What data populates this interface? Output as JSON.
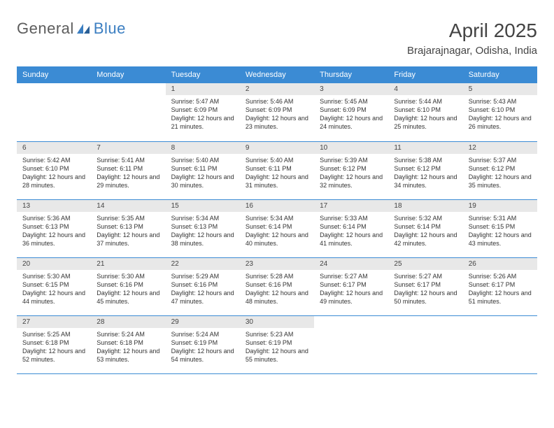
{
  "brand": {
    "general": "General",
    "blue": "Blue"
  },
  "title": "April 2025",
  "location": "Brajarajnagar, Odisha, India",
  "colors": {
    "header_bg": "#3b8bd4",
    "header_fg": "#ffffff",
    "daynum_bg": "#e8e8e8",
    "rule": "#3b8bd4",
    "brand_gray": "#5c5c5c",
    "brand_blue": "#3b7ec1"
  },
  "weekdays": [
    "Sunday",
    "Monday",
    "Tuesday",
    "Wednesday",
    "Thursday",
    "Friday",
    "Saturday"
  ],
  "layout": {
    "first_weekday_index": 2,
    "days_in_month": 30
  },
  "days": {
    "1": {
      "sunrise": "5:47 AM",
      "sunset": "6:09 PM",
      "daylight": "12 hours and 21 minutes."
    },
    "2": {
      "sunrise": "5:46 AM",
      "sunset": "6:09 PM",
      "daylight": "12 hours and 23 minutes."
    },
    "3": {
      "sunrise": "5:45 AM",
      "sunset": "6:09 PM",
      "daylight": "12 hours and 24 minutes."
    },
    "4": {
      "sunrise": "5:44 AM",
      "sunset": "6:10 PM",
      "daylight": "12 hours and 25 minutes."
    },
    "5": {
      "sunrise": "5:43 AM",
      "sunset": "6:10 PM",
      "daylight": "12 hours and 26 minutes."
    },
    "6": {
      "sunrise": "5:42 AM",
      "sunset": "6:10 PM",
      "daylight": "12 hours and 28 minutes."
    },
    "7": {
      "sunrise": "5:41 AM",
      "sunset": "6:11 PM",
      "daylight": "12 hours and 29 minutes."
    },
    "8": {
      "sunrise": "5:40 AM",
      "sunset": "6:11 PM",
      "daylight": "12 hours and 30 minutes."
    },
    "9": {
      "sunrise": "5:40 AM",
      "sunset": "6:11 PM",
      "daylight": "12 hours and 31 minutes."
    },
    "10": {
      "sunrise": "5:39 AM",
      "sunset": "6:12 PM",
      "daylight": "12 hours and 32 minutes."
    },
    "11": {
      "sunrise": "5:38 AM",
      "sunset": "6:12 PM",
      "daylight": "12 hours and 34 minutes."
    },
    "12": {
      "sunrise": "5:37 AM",
      "sunset": "6:12 PM",
      "daylight": "12 hours and 35 minutes."
    },
    "13": {
      "sunrise": "5:36 AM",
      "sunset": "6:13 PM",
      "daylight": "12 hours and 36 minutes."
    },
    "14": {
      "sunrise": "5:35 AM",
      "sunset": "6:13 PM",
      "daylight": "12 hours and 37 minutes."
    },
    "15": {
      "sunrise": "5:34 AM",
      "sunset": "6:13 PM",
      "daylight": "12 hours and 38 minutes."
    },
    "16": {
      "sunrise": "5:34 AM",
      "sunset": "6:14 PM",
      "daylight": "12 hours and 40 minutes."
    },
    "17": {
      "sunrise": "5:33 AM",
      "sunset": "6:14 PM",
      "daylight": "12 hours and 41 minutes."
    },
    "18": {
      "sunrise": "5:32 AM",
      "sunset": "6:14 PM",
      "daylight": "12 hours and 42 minutes."
    },
    "19": {
      "sunrise": "5:31 AM",
      "sunset": "6:15 PM",
      "daylight": "12 hours and 43 minutes."
    },
    "20": {
      "sunrise": "5:30 AM",
      "sunset": "6:15 PM",
      "daylight": "12 hours and 44 minutes."
    },
    "21": {
      "sunrise": "5:30 AM",
      "sunset": "6:16 PM",
      "daylight": "12 hours and 45 minutes."
    },
    "22": {
      "sunrise": "5:29 AM",
      "sunset": "6:16 PM",
      "daylight": "12 hours and 47 minutes."
    },
    "23": {
      "sunrise": "5:28 AM",
      "sunset": "6:16 PM",
      "daylight": "12 hours and 48 minutes."
    },
    "24": {
      "sunrise": "5:27 AM",
      "sunset": "6:17 PM",
      "daylight": "12 hours and 49 minutes."
    },
    "25": {
      "sunrise": "5:27 AM",
      "sunset": "6:17 PM",
      "daylight": "12 hours and 50 minutes."
    },
    "26": {
      "sunrise": "5:26 AM",
      "sunset": "6:17 PM",
      "daylight": "12 hours and 51 minutes."
    },
    "27": {
      "sunrise": "5:25 AM",
      "sunset": "6:18 PM",
      "daylight": "12 hours and 52 minutes."
    },
    "28": {
      "sunrise": "5:24 AM",
      "sunset": "6:18 PM",
      "daylight": "12 hours and 53 minutes."
    },
    "29": {
      "sunrise": "5:24 AM",
      "sunset": "6:19 PM",
      "daylight": "12 hours and 54 minutes."
    },
    "30": {
      "sunrise": "5:23 AM",
      "sunset": "6:19 PM",
      "daylight": "12 hours and 55 minutes."
    }
  },
  "labels": {
    "sunrise": "Sunrise:",
    "sunset": "Sunset:",
    "daylight": "Daylight:"
  }
}
